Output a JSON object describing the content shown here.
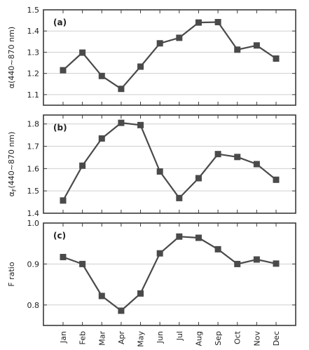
{
  "chart_data": [
    {
      "type": "line",
      "panel_label": "(a)",
      "ylabel": "α(440~870 nm)",
      "ylabel_symbol": "α",
      "ylabel_sub": "",
      "ylabel_rest": "(440~870 nm)",
      "categories": [
        "Jan",
        "Feb",
        "Mar",
        "Apr",
        "May",
        "Jun",
        "Jul",
        "Aug",
        "Sep",
        "Oct",
        "Nov",
        "Dec"
      ],
      "values": [
        1.215,
        1.298,
        1.188,
        1.127,
        1.232,
        1.342,
        1.368,
        1.44,
        1.442,
        1.312,
        1.332,
        1.27
      ],
      "ylim": [
        1.05,
        1.5
      ],
      "yticks": [
        1.1,
        1.2,
        1.3,
        1.4,
        1.5
      ],
      "ytick_labels": [
        "1.1",
        "1.2",
        "1.3",
        "1.4",
        "1.5"
      ],
      "grid": true
    },
    {
      "type": "line",
      "panel_label": "(b)",
      "ylabel": "αF(440~870 nm)",
      "ylabel_symbol": "α",
      "ylabel_sub": "F",
      "ylabel_rest": "(440~870 nm)",
      "categories": [
        "Jan",
        "Feb",
        "Mar",
        "Apr",
        "May",
        "Jun",
        "Jul",
        "Aug",
        "Sep",
        "Oct",
        "Nov",
        "Dec"
      ],
      "values": [
        1.457,
        1.613,
        1.735,
        1.805,
        1.795,
        1.587,
        1.468,
        1.557,
        1.665,
        1.652,
        1.62,
        1.55
      ],
      "ylim": [
        1.4,
        1.84
      ],
      "yticks": [
        1.4,
        1.5,
        1.6,
        1.7,
        1.8
      ],
      "ytick_labels": [
        "1.4",
        "1.5",
        "1.6",
        "1.7",
        "1.8"
      ],
      "grid": true
    },
    {
      "type": "line",
      "panel_label": "(c)",
      "ylabel": "F ratio",
      "ylabel_symbol": "F ratio",
      "ylabel_sub": "",
      "ylabel_rest": "",
      "categories": [
        "Jan",
        "Feb",
        "Mar",
        "Apr",
        "May",
        "Jun",
        "Jul",
        "Aug",
        "Sep",
        "Oct",
        "Nov",
        "Dec"
      ],
      "values": [
        0.917,
        0.9,
        0.822,
        0.786,
        0.828,
        0.926,
        0.967,
        0.964,
        0.936,
        0.9,
        0.911,
        0.901
      ],
      "ylim": [
        0.75,
        1.0
      ],
      "yticks": [
        0.8,
        0.9,
        1.0
      ],
      "ytick_labels": [
        "0.8",
        "0.9",
        "1.0"
      ],
      "grid": true
    }
  ],
  "xtick_labels": [
    "Jan",
    "Feb",
    "Mar",
    "Apr",
    "May",
    "Jun",
    "Jul",
    "Aug",
    "Sep",
    "Oct",
    "Nov",
    "Dec"
  ],
  "colors": {
    "series": "#4a4a4a",
    "frame": "#3a3a3a",
    "grid": "#cfcfcf"
  }
}
